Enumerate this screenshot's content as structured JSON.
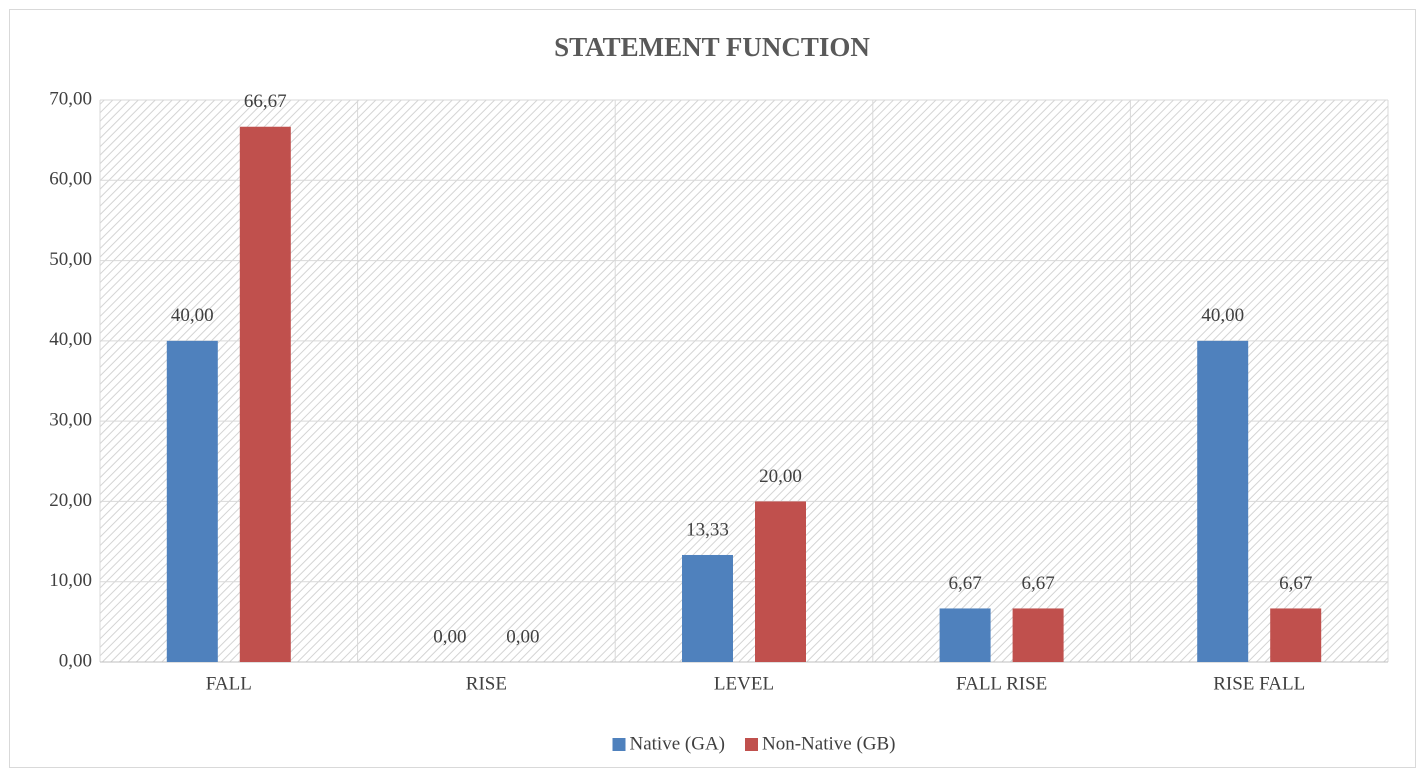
{
  "chart_data": {
    "type": "bar",
    "title": "STATEMENT FUNCTION",
    "categories": [
      "FALL",
      "RISE",
      "LEVEL",
      "FALL RISE",
      "RISE FALL"
    ],
    "series": [
      {
        "name": "Native (GA)",
        "color": "#4f81bd",
        "values": [
          40,
          0,
          13.33,
          6.67,
          40
        ],
        "value_labels": [
          "40,00",
          "0,00",
          "13,33",
          "6,67",
          "40,00"
        ]
      },
      {
        "name": "Non-Native (GB)",
        "color": "#c0504d",
        "values": [
          66.67,
          0,
          20,
          6.67,
          6.67
        ],
        "value_labels": [
          "66,67",
          "0,00",
          "20,00",
          "6,67",
          "6,67"
        ]
      }
    ],
    "ylim": [
      0,
      70
    ],
    "yticks": [
      {
        "value": 0,
        "label": "0,00"
      },
      {
        "value": 10,
        "label": "10,00"
      },
      {
        "value": 20,
        "label": "20,00"
      },
      {
        "value": 30,
        "label": "30,00"
      },
      {
        "value": 40,
        "label": "40,00"
      },
      {
        "value": 50,
        "label": "50,00"
      },
      {
        "value": 60,
        "label": "60,00"
      },
      {
        "value": 70,
        "label": "70,00"
      }
    ],
    "grid": true,
    "legend": "bottom"
  }
}
